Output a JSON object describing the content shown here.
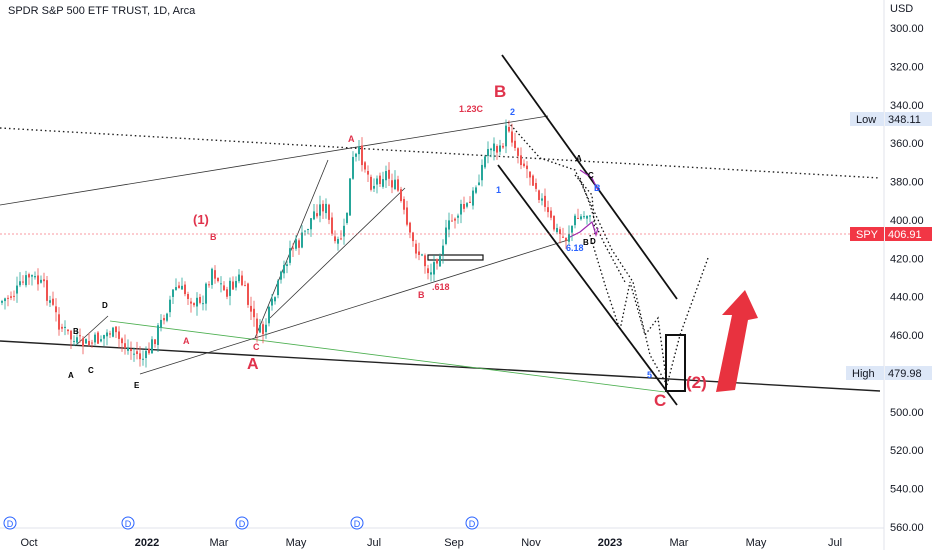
{
  "header": {
    "title": "SPDR S&P 500 ETF TRUST, 1D, Arca",
    "currency": "USD"
  },
  "chart_data": {
    "type": "candlestick",
    "y_axis": {
      "ticks": [
        300,
        320,
        340,
        360,
        380,
        400,
        420,
        440,
        460,
        500,
        520,
        540,
        560
      ],
      "range": [
        292,
        566
      ],
      "note_order": "values increase downward (inverted price scale)"
    },
    "x_axis": {
      "ticks": [
        "Oct",
        "2022",
        "Mar",
        "May",
        "Jul",
        "Sep",
        "Nov",
        "2023",
        "Mar",
        "May",
        "Jul"
      ],
      "dividend_markers": [
        "D",
        "D",
        "D",
        "D",
        "D"
      ]
    },
    "price_path": [
      [
        0,
        443
      ],
      [
        15,
        438
      ],
      [
        30,
        429
      ],
      [
        45,
        436
      ],
      [
        60,
        455
      ],
      [
        75,
        464
      ],
      [
        90,
        465
      ],
      [
        110,
        458
      ],
      [
        130,
        468
      ],
      [
        145,
        473
      ],
      [
        160,
        455
      ],
      [
        175,
        435
      ],
      [
        190,
        440
      ],
      [
        200,
        445
      ],
      [
        212,
        425
      ],
      [
        225,
        438
      ],
      [
        240,
        430
      ],
      [
        255,
        455
      ],
      [
        262,
        460
      ],
      [
        275,
        440
      ],
      [
        290,
        415
      ],
      [
        300,
        412
      ],
      [
        315,
        395
      ],
      [
        325,
        392
      ],
      [
        335,
        415
      ],
      [
        345,
        405
      ],
      [
        352,
        370
      ],
      [
        360,
        365
      ],
      [
        372,
        382
      ],
      [
        385,
        375
      ],
      [
        398,
        385
      ],
      [
        410,
        410
      ],
      [
        420,
        418
      ],
      [
        430,
        428
      ],
      [
        440,
        415
      ],
      [
        450,
        402
      ],
      [
        460,
        395
      ],
      [
        470,
        392
      ],
      [
        480,
        375
      ],
      [
        490,
        360
      ],
      [
        500,
        365
      ],
      [
        508,
        350
      ],
      [
        515,
        362
      ],
      [
        525,
        372
      ],
      [
        535,
        380
      ],
      [
        545,
        395
      ],
      [
        555,
        405
      ],
      [
        565,
        410
      ],
      [
        575,
        400
      ],
      [
        585,
        398
      ],
      [
        590,
        395
      ]
    ],
    "annotations": {
      "red_small": [
        "A",
        "B",
        "A",
        "C",
        "B",
        "1.23C",
        ".618",
        "A"
      ],
      "red_large": [
        "(1)",
        "A",
        "B",
        "C",
        "(2)"
      ],
      "black": [
        "A",
        "B",
        "C",
        "D",
        "E",
        "A",
        "C",
        "B",
        "D"
      ],
      "blue": [
        "1",
        "2",
        "5",
        "B",
        "6.18"
      ]
    },
    "price_labels": [
      {
        "label": "Low",
        "value": "348.11"
      },
      {
        "label": "SPY",
        "value": "406.91"
      },
      {
        "label": "High",
        "value": "479.98"
      }
    ]
  }
}
